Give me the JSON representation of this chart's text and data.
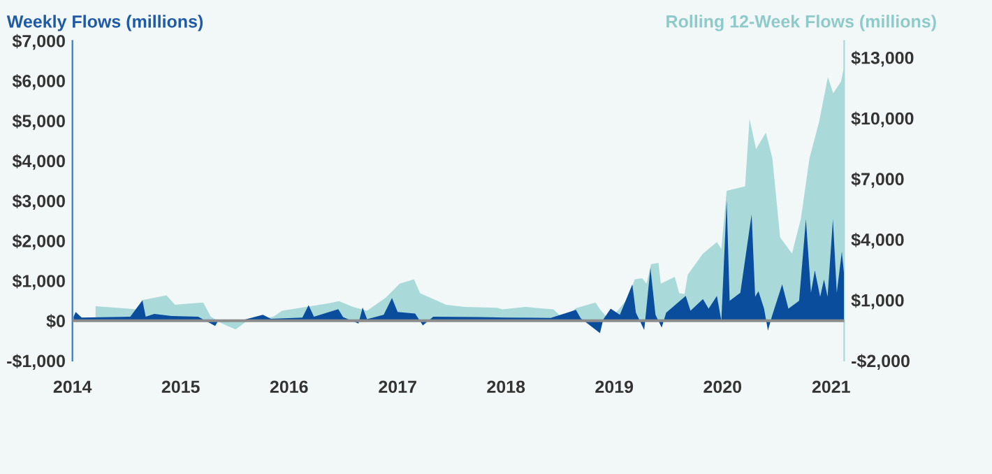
{
  "chart_data": {
    "type": "area",
    "ylabel": "Weekly Flows (millions)",
    "y2label": "Rolling 12-Week Flows (millions)",
    "xlim": [
      "2014-01-01",
      "2021-02-14"
    ],
    "xticks": [
      {
        "value": "2014-01-01",
        "label": "2014"
      },
      {
        "value": "2015-01-01",
        "label": "2015"
      },
      {
        "value": "2016-01-01",
        "label": "2016"
      },
      {
        "value": "2017-01-01",
        "label": "2017"
      },
      {
        "value": "2018-01-01",
        "label": "2018"
      },
      {
        "value": "2019-01-01",
        "label": "2019"
      },
      {
        "value": "2020-01-01",
        "label": "2020"
      },
      {
        "value": "2021-01-01",
        "label": "2021"
      }
    ],
    "ylim": [
      -1000,
      7000
    ],
    "yticks": [
      {
        "value": -1000,
        "label": "-$1,000"
      },
      {
        "value": 0,
        "label": "$0"
      },
      {
        "value": 1000,
        "label": "$1,000"
      },
      {
        "value": 2000,
        "label": "$2,000"
      },
      {
        "value": 3000,
        "label": "$3,000"
      },
      {
        "value": 4000,
        "label": "$4,000"
      },
      {
        "value": 5000,
        "label": "$5,000"
      },
      {
        "value": 6000,
        "label": "$6,000"
      },
      {
        "value": 7000,
        "label": "$7,000"
      }
    ],
    "y2lim": [
      -2000,
      13830
    ],
    "y2ticks": [
      {
        "value": -2000,
        "label": "-$2,000"
      },
      {
        "value": 1000,
        "label": "$1,000"
      },
      {
        "value": 4000,
        "label": "$4,000"
      },
      {
        "value": 7000,
        "label": "$7,000"
      },
      {
        "value": 10000,
        "label": "$10,000"
      },
      {
        "value": 13000,
        "label": "$13,000"
      }
    ],
    "ref_lines": [
      {
        "axis": "y",
        "value": 0,
        "color": "#8c8c8c"
      }
    ],
    "grid": false,
    "legend": false,
    "series": [
      {
        "axis": "y2",
        "color": "#a9d9d9",
        "x": [
          "2014-03-20",
          "2014-08-10",
          "2014-08-25",
          "2014-11-14",
          "2014-12-13",
          "2015-03-18",
          "2015-04-12",
          "2015-05-19",
          "2015-07-05",
          "2015-08-08",
          "2015-09-20",
          "2015-11-10",
          "2015-12-09",
          "2016-02-28",
          "2016-05-15",
          "2016-06-17",
          "2016-08-04",
          "2016-09-20",
          "2016-11-22",
          "2017-01-08",
          "2017-02-25",
          "2017-03-18",
          "2017-06-14",
          "2017-08-15",
          "2017-12-03",
          "2017-12-20",
          "2018-03-08",
          "2018-06-10",
          "2018-07-13",
          "2018-08-25",
          "2018-10-30",
          "2018-11-14",
          "2018-12-16",
          "2019-02-17",
          "2019-03-11",
          "2019-04-05",
          "2019-04-20",
          "2019-05-05",
          "2019-05-30",
          "2019-06-07",
          "2019-07-24",
          "2019-08-08",
          "2019-08-26",
          "2019-09-06",
          "2019-10-27",
          "2019-12-13",
          "2019-12-28",
          "2020-01-15",
          "2020-03-17",
          "2020-04-01",
          "2020-04-23",
          "2020-05-26",
          "2020-06-17",
          "2020-07-13",
          "2020-08-22",
          "2020-09-21",
          "2020-10-20",
          "2020-11-22",
          "2020-12-21",
          "2021-01-08",
          "2021-02-03",
          "2021-02-13"
        ],
        "values": [
          700,
          540,
          1000,
          1230,
          770,
          880,
          190,
          -150,
          -450,
          -80,
          0,
          190,
          470,
          660,
          840,
          950,
          660,
          470,
          1120,
          1810,
          2030,
          1340,
          770,
          660,
          620,
          540,
          660,
          540,
          80,
          600,
          880,
          540,
          0,
          1100,
          2030,
          2080,
          1810,
          2770,
          2840,
          1810,
          2150,
          1340,
          1300,
          2260,
          3300,
          3870,
          3520,
          6400,
          6630,
          9970,
          8470,
          9280,
          8010,
          4100,
          3300,
          5020,
          8010,
          9850,
          12030,
          11230,
          11810,
          12500
        ]
      },
      {
        "axis": "y",
        "color": "#0a4d9c",
        "x": [
          "2014-01-05",
          "2014-01-12",
          "2014-02-01",
          "2014-07-15",
          "2014-08-25",
          "2014-09-05",
          "2014-10-04",
          "2014-12-01",
          "2015-03-01",
          "2015-04-27",
          "2015-05-10",
          "2015-08-01",
          "2015-10-05",
          "2015-11-01",
          "2016-02-15",
          "2016-03-07",
          "2016-03-25",
          "2016-06-15",
          "2016-07-01",
          "2016-08-22",
          "2016-09-05",
          "2016-09-20",
          "2016-11-15",
          "2016-12-13",
          "2017-01-01",
          "2017-03-01",
          "2017-03-27",
          "2017-05-01",
          "2017-10-01",
          "2018-01-01",
          "2018-06-01",
          "2018-08-25",
          "2018-09-10",
          "2018-11-14",
          "2018-11-25",
          "2018-12-20",
          "2019-01-20",
          "2019-03-03",
          "2019-03-15",
          "2019-04-12",
          "2019-05-03",
          "2019-05-20",
          "2019-06-10",
          "2019-06-25",
          "2019-08-30",
          "2019-09-15",
          "2019-10-27",
          "2019-11-15",
          "2019-12-13",
          "2019-12-28",
          "2020-01-15",
          "2020-01-25",
          "2020-03-01",
          "2020-04-08",
          "2020-04-20",
          "2020-05-01",
          "2020-05-20",
          "2020-06-02",
          "2020-06-15",
          "2020-07-20",
          "2020-08-10",
          "2020-09-15",
          "2020-10-08",
          "2020-10-25",
          "2020-11-07",
          "2020-11-25",
          "2020-12-08",
          "2020-12-20",
          "2021-01-07",
          "2021-01-20",
          "2021-02-06",
          "2021-02-13"
        ],
        "values": [
          100,
          220,
          80,
          100,
          510,
          100,
          170,
          120,
          100,
          -130,
          30,
          20,
          150,
          50,
          80,
          390,
          100,
          290,
          90,
          -70,
          330,
          40,
          150,
          570,
          220,
          180,
          -120,
          100,
          90,
          80,
          70,
          270,
          60,
          -310,
          30,
          300,
          150,
          910,
          200,
          -230,
          1320,
          150,
          -170,
          200,
          620,
          250,
          540,
          300,
          620,
          0,
          3010,
          500,
          700,
          2660,
          600,
          740,
          300,
          -250,
          100,
          910,
          300,
          500,
          2540,
          700,
          1260,
          600,
          1030,
          600,
          2540,
          700,
          1730,
          1200
        ]
      }
    ]
  }
}
